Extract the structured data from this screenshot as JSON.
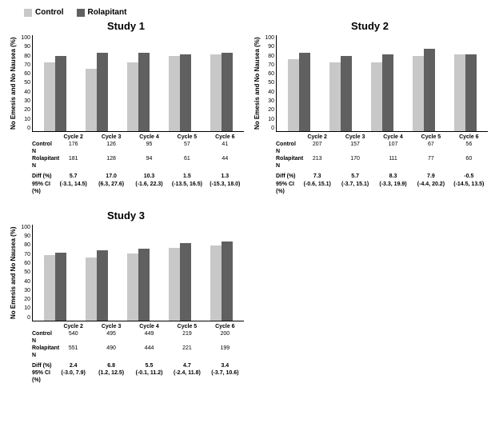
{
  "colors": {
    "control": "#c8c8c8",
    "rolapitant": "#606060",
    "axis": "#000000",
    "background": "#ffffff"
  },
  "legend": {
    "control": "Control",
    "rolapitant": "Rolapitant"
  },
  "axis": {
    "ylabel": "No Emesis and No Nausea (%)",
    "ymax": 100,
    "ticks": [
      100,
      90,
      80,
      70,
      60,
      50,
      40,
      30,
      20,
      10,
      0
    ]
  },
  "row_labels": {
    "cycle": "",
    "controlN": "Control N",
    "rolapitantN": "Rolapitant N",
    "diff": "Diff (%)",
    "ci": "95% CI (%)"
  },
  "studies": [
    {
      "title": "Study 1",
      "cycles": [
        {
          "label": "Cycle 2",
          "control_val": 72,
          "rola_val": 78,
          "controlN": "176",
          "rolaN": "181",
          "diff": "5.7",
          "ci": "(-3.1, 14.5)"
        },
        {
          "label": "Cycle 3",
          "control_val": 65,
          "rola_val": 82,
          "controlN": "126",
          "rolaN": "128",
          "diff": "17.0",
          "ci": "(6.3, 27.6)"
        },
        {
          "label": "Cycle 4",
          "control_val": 72,
          "rola_val": 82,
          "controlN": "95",
          "rolaN": "94",
          "diff": "10.3",
          "ci": "(-1.6, 22.3)"
        },
        {
          "label": "Cycle 5",
          "control_val": 78,
          "rola_val": 80,
          "controlN": "57",
          "rolaN": "61",
          "diff": "1.5",
          "ci": "(-13.5, 16.5)"
        },
        {
          "label": "Cycle 6",
          "control_val": 80,
          "rola_val": 82,
          "controlN": "41",
          "rolaN": "44",
          "diff": "1.3",
          "ci": "(-15.3, 18.0)"
        }
      ]
    },
    {
      "title": "Study 2",
      "cycles": [
        {
          "label": "Cycle 2",
          "control_val": 75,
          "rola_val": 82,
          "controlN": "207",
          "rolaN": "213",
          "diff": "7.3",
          "ci": "(-0.6, 15.1)"
        },
        {
          "label": "Cycle 3",
          "control_val": 72,
          "rola_val": 78,
          "controlN": "157",
          "rolaN": "170",
          "diff": "5.7",
          "ci": "(-3.7, 15.1)"
        },
        {
          "label": "Cycle 4",
          "control_val": 72,
          "rola_val": 80,
          "controlN": "107",
          "rolaN": "111",
          "diff": "8.3",
          "ci": "(-3.3, 19.9)"
        },
        {
          "label": "Cycle 5",
          "control_val": 78,
          "rola_val": 86,
          "controlN": "67",
          "rolaN": "77",
          "diff": "7.9",
          "ci": "(-4.4, 20.2)"
        },
        {
          "label": "Cycle 6",
          "control_val": 80,
          "rola_val": 80,
          "controlN": "56",
          "rolaN": "60",
          "diff": "-0.5",
          "ci": "(-14.5, 13.5)"
        }
      ]
    },
    {
      "title": "Study 3",
      "cycles": [
        {
          "label": "Cycle 2",
          "control_val": 68,
          "rola_val": 71,
          "controlN": "540",
          "rolaN": "551",
          "diff": "2.4",
          "ci": "(-3.0, 7.9)"
        },
        {
          "label": "Cycle 3",
          "control_val": 66,
          "rola_val": 73,
          "controlN": "495",
          "rolaN": "490",
          "diff": "6.8",
          "ci": "(1.2, 12.5)"
        },
        {
          "label": "Cycle 4",
          "control_val": 70,
          "rola_val": 75,
          "controlN": "449",
          "rolaN": "444",
          "diff": "5.5",
          "ci": "(-0.1, 11.2)"
        },
        {
          "label": "Cycle 5",
          "control_val": 76,
          "rola_val": 81,
          "controlN": "219",
          "rolaN": "221",
          "diff": "4.7",
          "ci": "(-2.4, 11.8)"
        },
        {
          "label": "Cycle 6",
          "control_val": 78,
          "rola_val": 82,
          "controlN": "200",
          "rolaN": "199",
          "diff": "3.4",
          "ci": "(-3.7, 10.6)"
        }
      ]
    }
  ]
}
